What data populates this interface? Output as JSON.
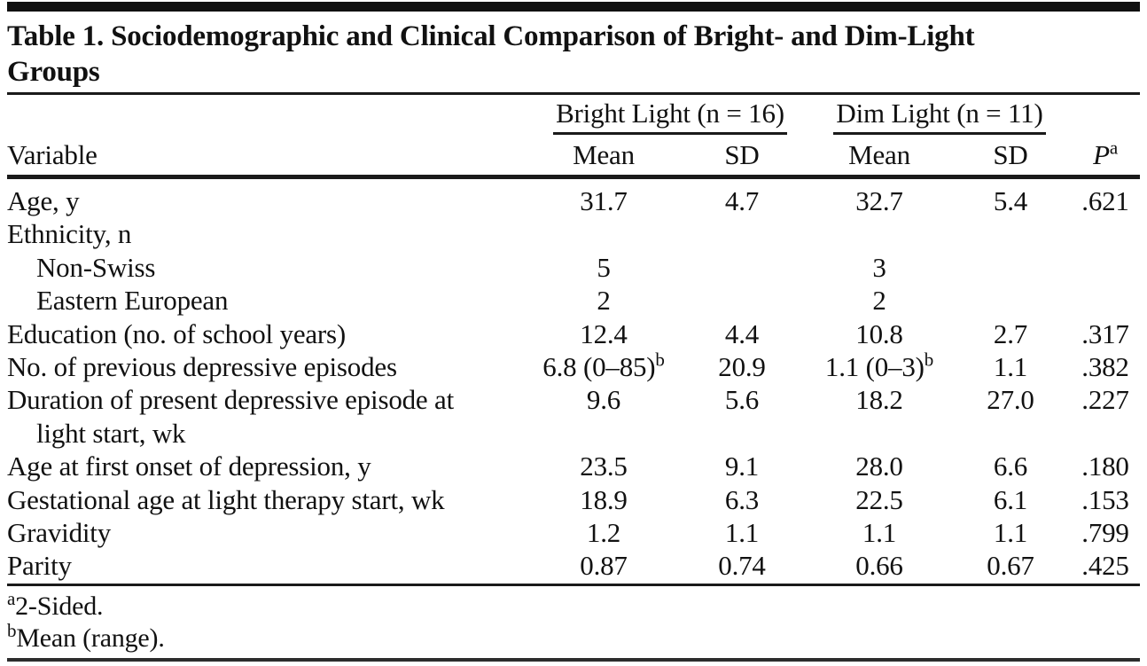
{
  "title": {
    "line1": "Table 1. Sociodemographic and Clinical Comparison of Bright- and Dim-Light",
    "line2": "Groups"
  },
  "table": {
    "col_groups": {
      "bright": "Bright Light (n = 16)",
      "dim": "Dim Light (n = 11)"
    },
    "col_headers": {
      "variable": "Variable",
      "mean1": "Mean",
      "sd1": "SD",
      "mean2": "Mean",
      "sd2": "SD",
      "p": "P",
      "p_sup": "a"
    },
    "rows": [
      {
        "label": "Age, y",
        "mean1": "31.7",
        "sd1": "4.7",
        "mean2": "32.7",
        "sd2": "5.4",
        "p": ".621"
      },
      {
        "label": "Ethnicity, n",
        "mean1": "",
        "sd1": "",
        "mean2": "",
        "sd2": "",
        "p": ""
      },
      {
        "label": "Non-Swiss",
        "indent": true,
        "mean1": "5",
        "sd1": "",
        "mean2": "3",
        "sd2": "",
        "p": ""
      },
      {
        "label": "Eastern European",
        "indent": true,
        "mean1": "2",
        "sd1": "",
        "mean2": "2",
        "sd2": "",
        "p": ""
      },
      {
        "label": "Education (no. of school years)",
        "mean1": "12.4",
        "sd1": "4.4",
        "mean2": "10.8",
        "sd2": "2.7",
        "p": ".317"
      },
      {
        "label": "No. of previous depressive episodes",
        "mean1": "6.8 (0–85)",
        "mean1_sup": "b",
        "sd1": "20.9",
        "mean2": "1.1 (0–3)",
        "mean2_sup": "b",
        "sd2": "1.1",
        "p": ".382"
      },
      {
        "label": "Duration of present depressive episode at",
        "label2": "light start, wk",
        "mean1": "9.6",
        "sd1": "5.6",
        "mean2": "18.2",
        "sd2": "27.0",
        "p": ".227"
      },
      {
        "label": "Age at first onset of depression, y",
        "mean1": "23.5",
        "sd1": "9.1",
        "mean2": "28.0",
        "sd2": "6.6",
        "p": ".180"
      },
      {
        "label": "Gestational age at light therapy start, wk",
        "mean1": "18.9",
        "sd1": "6.3",
        "mean2": "22.5",
        "sd2": "6.1",
        "p": ".153"
      },
      {
        "label": "Gravidity",
        "mean1": "1.2",
        "sd1": "1.1",
        "mean2": "1.1",
        "sd2": "1.1",
        "p": ".799"
      },
      {
        "label": "Parity",
        "mean1": "0.87",
        "sd1": "0.74",
        "mean2": "0.66",
        "sd2": "0.67",
        "p": ".425"
      }
    ]
  },
  "footnotes": [
    {
      "marker": "a",
      "text": "2-Sided."
    },
    {
      "marker": "b",
      "text": "Mean (range)."
    }
  ],
  "colors": {
    "text": "#111111",
    "rule": "#1a1a1a",
    "background": "#ffffff"
  }
}
